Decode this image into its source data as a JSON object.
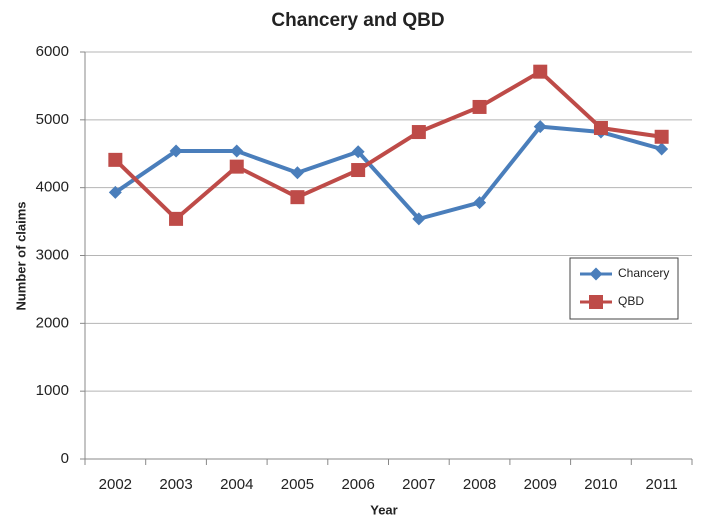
{
  "chart_data": {
    "type": "line",
    "title": "Chancery and QBD",
    "x_label": "Year",
    "y_label": "Number of claims",
    "categories": [
      "2002",
      "2003",
      "2004",
      "2005",
      "2006",
      "2007",
      "2008",
      "2009",
      "2010",
      "2011"
    ],
    "series": [
      {
        "name": "Chancery",
        "color": "#4a7ebb",
        "marker": "diamond",
        "values": [
          3930,
          4540,
          4540,
          4220,
          4530,
          3540,
          3780,
          4900,
          4820,
          4570
        ]
      },
      {
        "name": "QBD",
        "color": "#be4b48",
        "marker": "square",
        "values": [
          4410,
          3540,
          4310,
          3860,
          4260,
          4820,
          5190,
          5710,
          4880,
          4750
        ]
      }
    ],
    "ylim": [
      0,
      6000
    ],
    "yticks": [
      0,
      1000,
      2000,
      3000,
      4000,
      5000,
      6000
    ],
    "grid": true
  }
}
